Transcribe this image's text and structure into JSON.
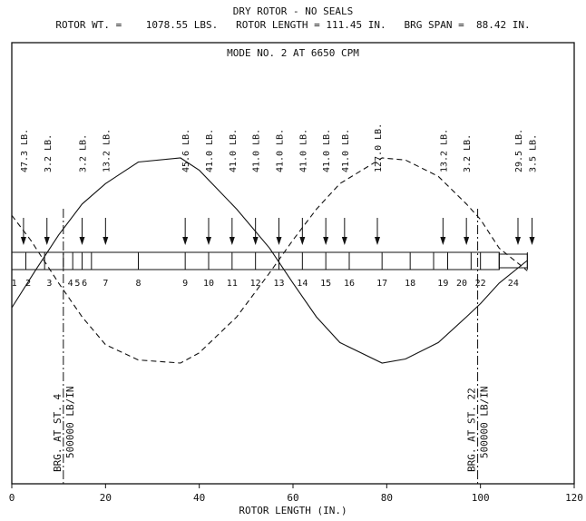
{
  "header": {
    "title": "DRY ROTOR - NO SEALS",
    "rotor_wt": "ROTOR WT. =    1078.55 LBS.",
    "rotor_length": "ROTOR LENGTH = 111.45 IN.",
    "brg_span": "BRG SPAN =  88.42 IN."
  },
  "mode_label": "MODE NO. 2 AT  6650 CPM",
  "chart_data": {
    "type": "line",
    "xlabel": "ROTOR LENGTH (IN.)",
    "xlim": [
      0,
      120
    ],
    "xticks": [
      "0",
      "20",
      "40",
      "60",
      "80",
      "100",
      "120"
    ],
    "series": [
      {
        "style": "solid",
        "x": [
          0,
          5,
          10,
          15,
          20,
          27,
          36,
          40,
          48,
          55,
          60,
          65,
          70,
          79,
          84,
          91,
          97,
          100,
          104,
          110
        ],
        "y": [
          -0.46,
          -0.1,
          0.25,
          0.55,
          0.75,
          0.96,
          1.0,
          0.88,
          0.5,
          0.12,
          -0.22,
          -0.55,
          -0.8,
          -1.0,
          -0.96,
          -0.8,
          -0.55,
          -0.42,
          -0.22,
          0.0
        ]
      },
      {
        "style": "dashed",
        "x": [
          0,
          4,
          10,
          15,
          20,
          27,
          36,
          40,
          48,
          55,
          60,
          65,
          70,
          79,
          84,
          91,
          97,
          100,
          104,
          110
        ],
        "y": [
          0.44,
          0.2,
          -0.22,
          -0.55,
          -0.82,
          -0.97,
          -1.0,
          -0.9,
          -0.55,
          -0.12,
          0.2,
          0.5,
          0.75,
          1.0,
          0.98,
          0.82,
          0.55,
          0.4,
          0.12,
          -0.1
        ]
      }
    ],
    "loads": [
      {
        "x": 2.5,
        "label": "47.3 LB."
      },
      {
        "x": 7.5,
        "label": "3.2 LB."
      },
      {
        "x": 15,
        "label": "3.2 LB."
      },
      {
        "x": 20,
        "label": "13.2 LB."
      },
      {
        "x": 37,
        "label": "45.6 LB."
      },
      {
        "x": 42,
        "label": "41.0 LB."
      },
      {
        "x": 47,
        "label": "41.0 LB."
      },
      {
        "x": 52,
        "label": "41.0 LB."
      },
      {
        "x": 57,
        "label": "41.0 LB."
      },
      {
        "x": 62,
        "label": "41.0 LB."
      },
      {
        "x": 67,
        "label": "41.0 LB."
      },
      {
        "x": 71,
        "label": "41.0 LB."
      },
      {
        "x": 78,
        "label": "127.0 LB."
      },
      {
        "x": 92,
        "label": "13.2 LB."
      },
      {
        "x": 97,
        "label": "3.2 LB."
      },
      {
        "x": 108,
        "label": "29.5 LB."
      },
      {
        "x": 111,
        "label": "3.5 LB."
      }
    ],
    "stations": [
      {
        "x": 0.5,
        "label": "1"
      },
      {
        "x": 3.5,
        "label": "2"
      },
      {
        "x": 8,
        "label": "3"
      },
      {
        "x": 12.5,
        "label": "4"
      },
      {
        "x": 14,
        "label": "5"
      },
      {
        "x": 15.5,
        "label": "6"
      },
      {
        "x": 20,
        "label": "7"
      },
      {
        "x": 27,
        "label": "8"
      },
      {
        "x": 37,
        "label": "9"
      },
      {
        "x": 42,
        "label": "10"
      },
      {
        "x": 47,
        "label": "11"
      },
      {
        "x": 52,
        "label": "12"
      },
      {
        "x": 57,
        "label": "13"
      },
      {
        "x": 62,
        "label": "14"
      },
      {
        "x": 67,
        "label": "15"
      },
      {
        "x": 72,
        "label": "16"
      },
      {
        "x": 79,
        "label": "17"
      },
      {
        "x": 85,
        "label": "18"
      },
      {
        "x": 92,
        "label": "19"
      },
      {
        "x": 96,
        "label": "20"
      },
      {
        "x": 100,
        "label": "22"
      },
      {
        "x": 107,
        "label": "24"
      }
    ],
    "segment_boundaries": [
      0,
      3,
      7,
      11,
      13,
      15,
      17,
      27,
      37,
      42,
      47,
      52,
      57,
      62,
      67,
      72,
      79,
      85,
      90,
      93,
      98,
      100,
      104,
      110
    ],
    "bearings": [
      {
        "x": 11,
        "station_label": "BRG. AT ST.  4",
        "stiffness_label": "500000 LB/IN"
      },
      {
        "x": 99.4,
        "station_label": "BRG. AT ST. 22",
        "stiffness_label": "500000 LB/IN"
      }
    ]
  }
}
